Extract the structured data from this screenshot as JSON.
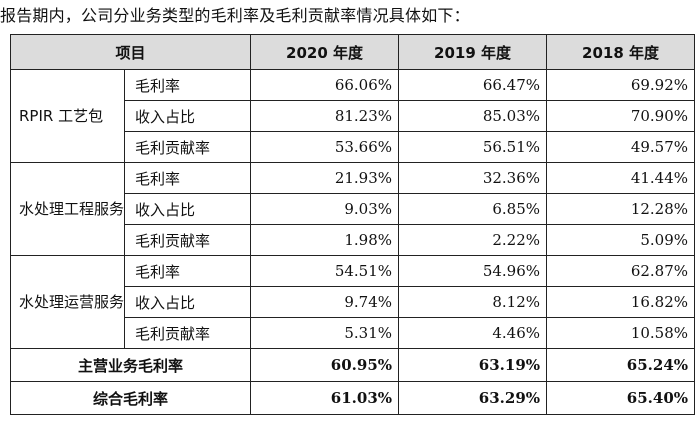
{
  "intro": "报告期内，公司分业务类型的毛利率及毛利贡献率情况具体如下：",
  "header": {
    "item": "项目",
    "years": [
      "2020 年度",
      "2019 年度",
      "2018 年度"
    ]
  },
  "groups": [
    {
      "name": "RPIR 工艺包",
      "rows": [
        {
          "metric": "毛利率",
          "values": [
            "66.06%",
            "66.47%",
            "69.92%"
          ]
        },
        {
          "metric": "收入占比",
          "values": [
            "81.23%",
            "85.03%",
            "70.90%"
          ]
        },
        {
          "metric": "毛利贡献率",
          "values": [
            "53.66%",
            "56.51%",
            "49.57%"
          ]
        }
      ]
    },
    {
      "name": "水处理工程服务",
      "rows": [
        {
          "metric": "毛利率",
          "values": [
            "21.93%",
            "32.36%",
            "41.44%"
          ]
        },
        {
          "metric": "收入占比",
          "values": [
            "9.03%",
            "6.85%",
            "12.28%"
          ]
        },
        {
          "metric": "毛利贡献率",
          "values": [
            "1.98%",
            "2.22%",
            "5.09%"
          ]
        }
      ]
    },
    {
      "name": "水处理运营服务",
      "rows": [
        {
          "metric": "毛利率",
          "values": [
            "54.51%",
            "54.96%",
            "62.87%"
          ]
        },
        {
          "metric": "收入占比",
          "values": [
            "9.74%",
            "8.12%",
            "16.82%"
          ]
        },
        {
          "metric": "毛利贡献率",
          "values": [
            "5.31%",
            "4.46%",
            "10.58%"
          ]
        }
      ]
    }
  ],
  "summary": [
    {
      "label": "主营业务毛利率",
      "values": [
        "60.95%",
        "63.19%",
        "65.24%"
      ]
    },
    {
      "label": "综合毛利率",
      "values": [
        "61.03%",
        "63.29%",
        "65.40%"
      ]
    }
  ]
}
